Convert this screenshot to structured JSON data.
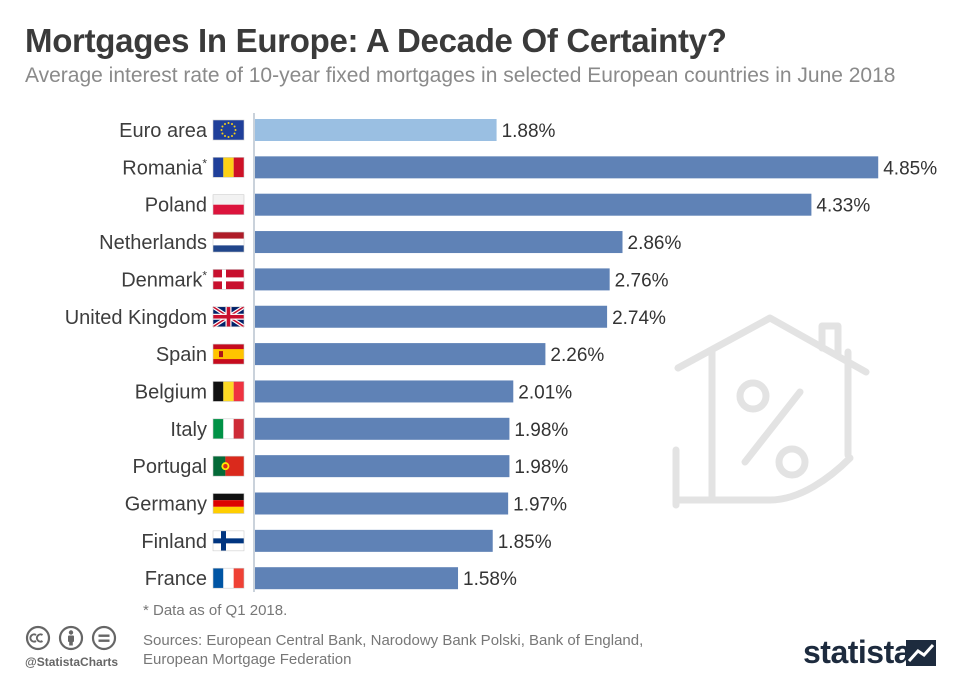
{
  "title": "Mortgages In Europe: A Decade Of Certainty?",
  "subtitle": "Average interest rate of 10-year fixed mortgages in selected European countries in June 2018",
  "footnote": "* Data as of Q1 2018.",
  "sources_line1": "Sources: European Central Bank, Narodowy Bank Polski, Bank of England,",
  "sources_line2": "European Mortgage Federation",
  "handle": "@StatistaCharts",
  "brand": "statista",
  "colors": {
    "bar": "#5f82b6",
    "highlight_bar": "#9abfe2",
    "separator": "#b9c3cf"
  },
  "chart_data": {
    "type": "bar",
    "orientation": "horizontal",
    "unit": "%",
    "categories": [
      "Euro area",
      "Romania",
      "Poland",
      "Netherlands",
      "Denmark",
      "United Kingdom",
      "Spain",
      "Belgium",
      "Italy",
      "Portugal",
      "Germany",
      "Finland",
      "France"
    ],
    "values": [
      1.88,
      4.85,
      4.33,
      2.86,
      2.76,
      2.74,
      2.26,
      2.01,
      1.98,
      1.98,
      1.97,
      1.85,
      1.58
    ],
    "value_labels": [
      "1.88%",
      "4.85%",
      "4.33%",
      "2.86%",
      "2.76%",
      "2.74%",
      "2.26%",
      "2.01%",
      "1.98%",
      "1.98%",
      "1.97%",
      "1.85%",
      "1.58%"
    ],
    "asterisk": [
      false,
      true,
      false,
      false,
      true,
      false,
      false,
      false,
      false,
      false,
      false,
      false,
      false
    ],
    "flags": [
      "eu",
      "romania",
      "poland",
      "netherlands",
      "denmark",
      "united-kingdom",
      "spain",
      "belgium",
      "italy",
      "portugal",
      "germany",
      "finland",
      "france"
    ],
    "highlight_index": 0,
    "title": "Mortgages In Europe: A Decade Of Certainty?",
    "xlabel": "",
    "ylabel": ""
  }
}
